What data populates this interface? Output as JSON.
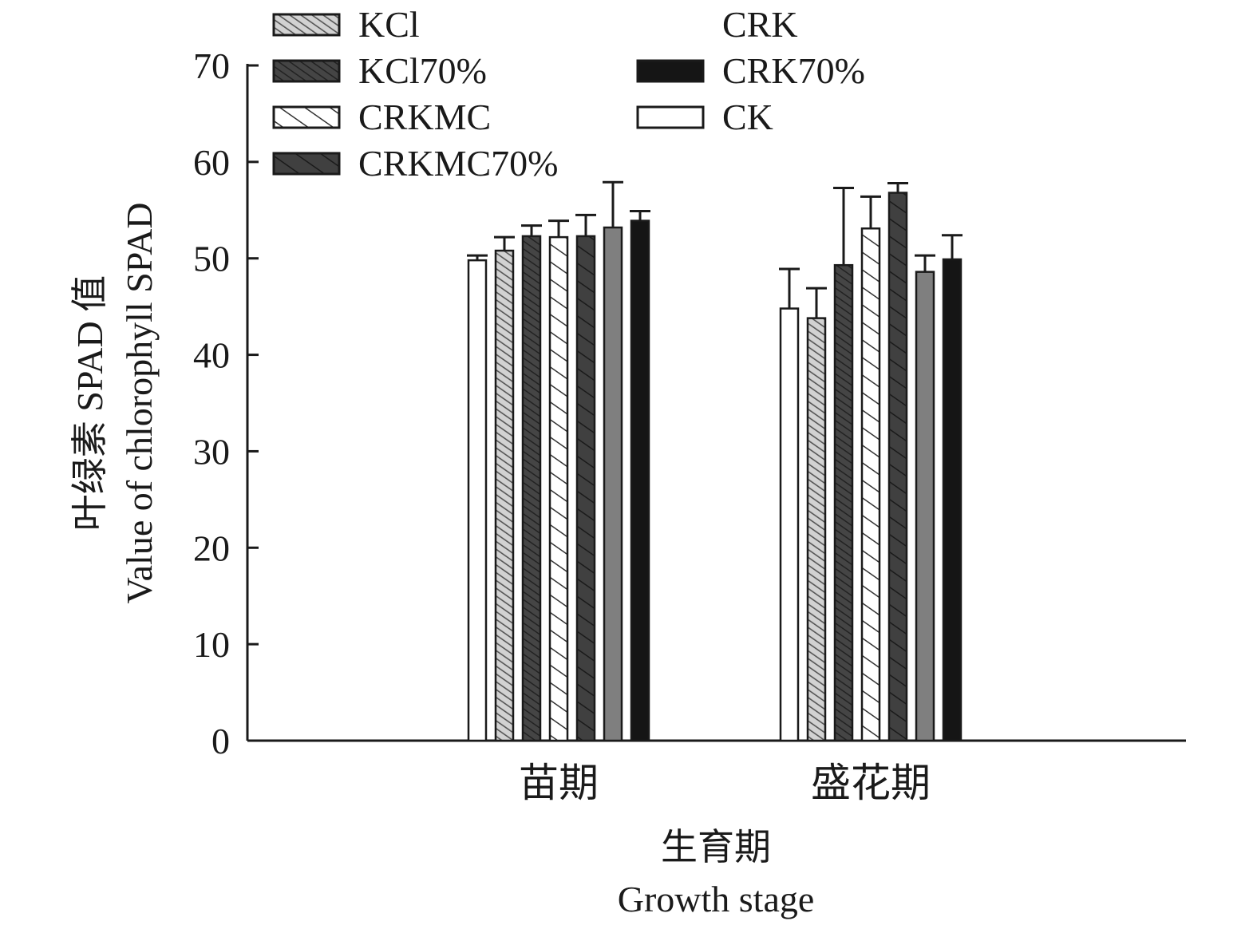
{
  "chart_data": {
    "type": "bar",
    "categories": [
      "苗期",
      "盛花期"
    ],
    "xlabel": [
      "生育期",
      "Growth stage"
    ],
    "ylabel": [
      "叶绿素 SPAD 值",
      "Value of chlorophyll SPAD"
    ],
    "ylim": [
      0,
      70
    ],
    "yticks": [
      0,
      10,
      20,
      30,
      40,
      50,
      60,
      70
    ],
    "legend_position": "top-left",
    "legend": [
      "KCl",
      "KCl70%",
      "CRKMC",
      "CRKMC70%",
      "CRK",
      "CRK70%",
      "CK"
    ],
    "series": [
      {
        "name": "CK",
        "fill": "white",
        "values": [
          49.8,
          44.8
        ],
        "errors": [
          0.5,
          4.1
        ]
      },
      {
        "name": "KCl",
        "fill": "hatch-fine-light",
        "values": [
          50.8,
          43.8
        ],
        "errors": [
          1.4,
          3.1
        ]
      },
      {
        "name": "KCl70%",
        "fill": "hatch-fine-dark",
        "values": [
          52.3,
          49.3
        ],
        "errors": [
          1.1,
          8.0
        ]
      },
      {
        "name": "CRKMC",
        "fill": "hatch-wide-light",
        "values": [
          52.2,
          53.1
        ],
        "errors": [
          1.7,
          3.3
        ]
      },
      {
        "name": "CRKMC70%",
        "fill": "hatch-wide-dark",
        "values": [
          52.3,
          56.8
        ],
        "errors": [
          2.2,
          1.0
        ]
      },
      {
        "name": "CRK",
        "fill": "gray",
        "values": [
          53.2,
          48.6
        ],
        "errors": [
          4.7,
          1.7
        ]
      },
      {
        "name": "CRK70%",
        "fill": "black",
        "values": [
          53.9,
          49.9
        ],
        "errors": [
          1.0,
          2.5
        ]
      }
    ]
  },
  "colors": {
    "axis": "#1a1a1a",
    "gray_fill": "#7f7f7f",
    "dark_fill": "#3f3f3f",
    "black_fill": "#151515",
    "light_hatch_bg": "#cfcfcf"
  }
}
